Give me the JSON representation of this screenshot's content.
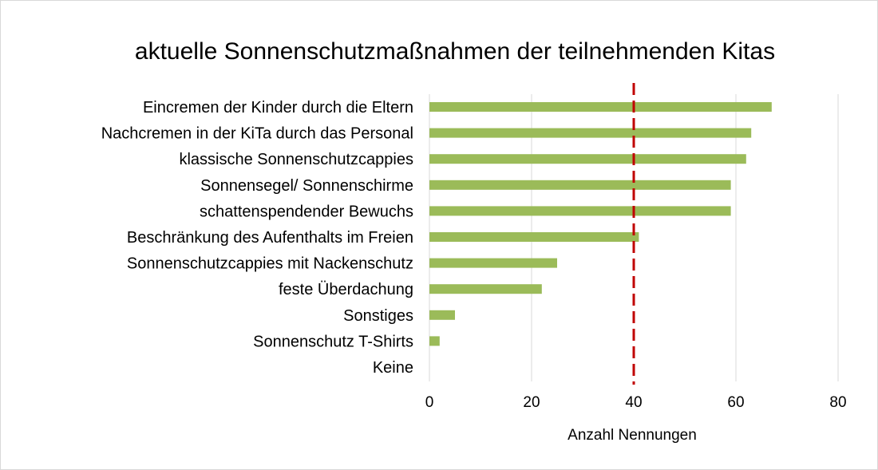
{
  "chart_data": {
    "type": "bar",
    "orientation": "horizontal",
    "title": "aktuelle Sonnenschutzmaßnahmen der teilnehmenden Kitas",
    "xlabel": "Anzahl Nennungen",
    "ylabel": "",
    "xlim": [
      0,
      80
    ],
    "xticks": [
      0,
      20,
      40,
      60,
      80
    ],
    "grid": "vertical",
    "categories": [
      "Eincremen der Kinder durch die Eltern",
      "Nachcremen in der KiTa durch das Personal",
      "klassische Sonnenschutzcappies",
      "Sonnensegel/ Sonnenschirme",
      "schattenspendender Bewuchs",
      "Beschränkung des Aufenthalts im Freien",
      "Sonnenschutzcappies mit Nackenschutz",
      "feste Überdachung",
      "Sonstiges",
      "Sonnenschutz T-Shirts",
      "Keine"
    ],
    "values": [
      67,
      63,
      62,
      59,
      59,
      41,
      25,
      22,
      5,
      2,
      0
    ],
    "reference_line": {
      "value": 40,
      "style": "dashed"
    },
    "colors": {
      "bar": "#9bbb59",
      "reference_line": "#c00000",
      "grid": "#d9d9d9"
    }
  }
}
